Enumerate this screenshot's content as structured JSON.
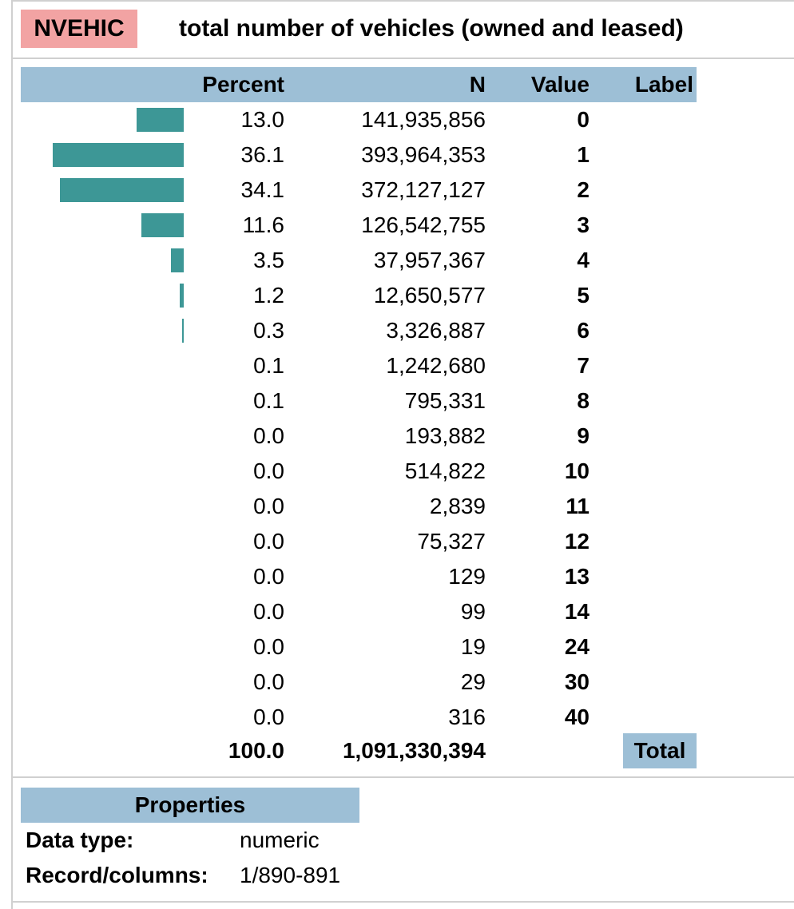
{
  "variable": {
    "name": "NVEHIC",
    "description": "total number of vehicles (owned and leased)"
  },
  "table": {
    "headers": {
      "percent": "Percent",
      "n": "N",
      "value": "Value",
      "label": "Label"
    },
    "rows": [
      {
        "percent": "13.0",
        "n": "141,935,856",
        "value": "0",
        "label": "",
        "share": 13.0
      },
      {
        "percent": "36.1",
        "n": "393,964,353",
        "value": "1",
        "label": "",
        "share": 36.1
      },
      {
        "percent": "34.1",
        "n": "372,127,127",
        "value": "2",
        "label": "",
        "share": 34.1
      },
      {
        "percent": "11.6",
        "n": "126,542,755",
        "value": "3",
        "label": "",
        "share": 11.6
      },
      {
        "percent": "3.5",
        "n": "37,957,367",
        "value": "4",
        "label": "",
        "share": 3.5
      },
      {
        "percent": "1.2",
        "n": "12,650,577",
        "value": "5",
        "label": "",
        "share": 1.2
      },
      {
        "percent": "0.3",
        "n": "3,326,887",
        "value": "6",
        "label": "",
        "share": 0.3
      },
      {
        "percent": "0.1",
        "n": "1,242,680",
        "value": "7",
        "label": "",
        "share": 0.1
      },
      {
        "percent": "0.1",
        "n": "795,331",
        "value": "8",
        "label": "",
        "share": 0.07
      },
      {
        "percent": "0.0",
        "n": "193,882",
        "value": "9",
        "label": "",
        "share": 0.02
      },
      {
        "percent": "0.0",
        "n": "514,822",
        "value": "10",
        "label": "",
        "share": 0.05
      },
      {
        "percent": "0.0",
        "n": "2,839",
        "value": "11",
        "label": "",
        "share": 0.0
      },
      {
        "percent": "0.0",
        "n": "75,327",
        "value": "12",
        "label": "",
        "share": 0.0
      },
      {
        "percent": "0.0",
        "n": "129",
        "value": "13",
        "label": "",
        "share": 0.0
      },
      {
        "percent": "0.0",
        "n": "99",
        "value": "14",
        "label": "",
        "share": 0.0
      },
      {
        "percent": "0.0",
        "n": "19",
        "value": "24",
        "label": "",
        "share": 0.0
      },
      {
        "percent": "0.0",
        "n": "29",
        "value": "30",
        "label": "",
        "share": 0.0
      },
      {
        "percent": "0.0",
        "n": "316",
        "value": "40",
        "label": "",
        "share": 0.0
      }
    ],
    "total": {
      "percent": "100.0",
      "n": "1,091,330,394",
      "label": "Total"
    }
  },
  "properties": {
    "heading": "Properties",
    "items": [
      {
        "key": "Data type:",
        "value": "numeric"
      },
      {
        "key": "Record/columns:",
        "value": "1/890-891"
      }
    ]
  },
  "colors": {
    "bar": "#3d9796",
    "header": "#9dbfd6",
    "name_badge": "#f2a3a3"
  }
}
